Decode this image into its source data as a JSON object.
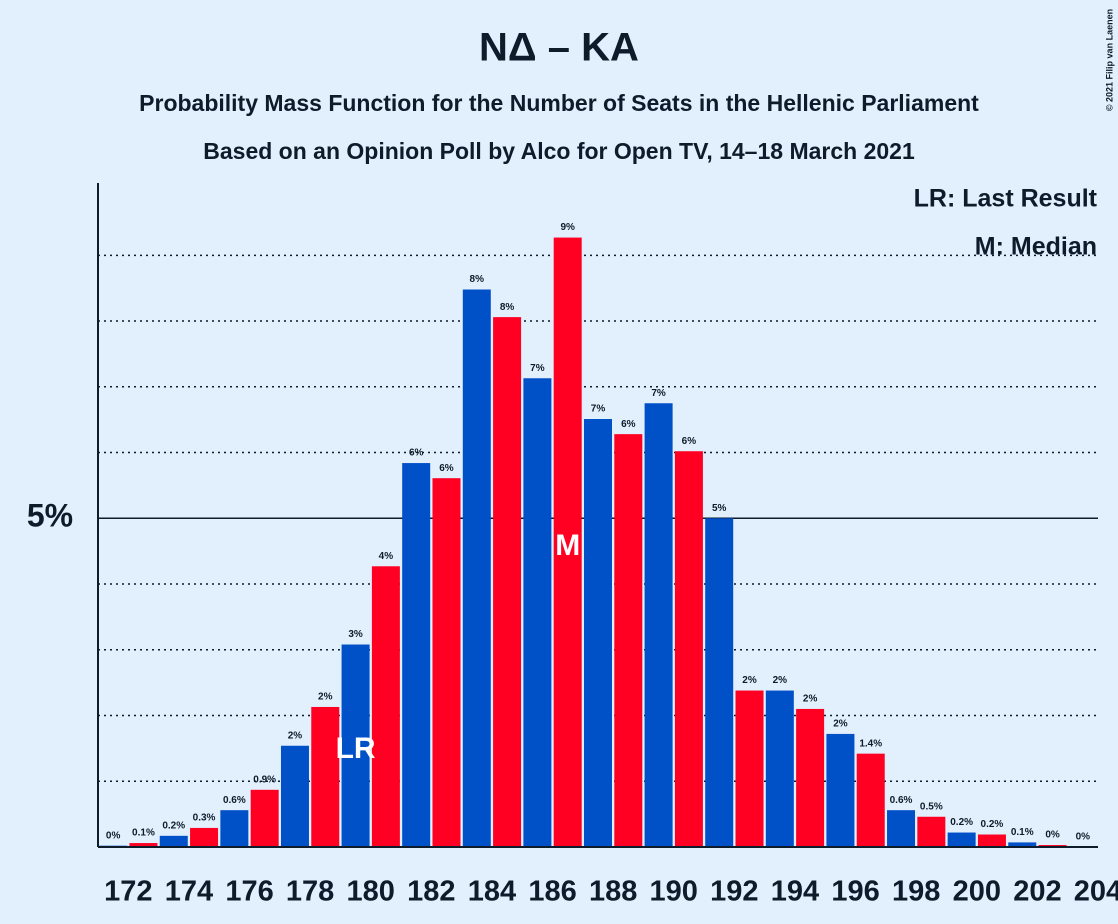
{
  "chart_data": {
    "type": "bar",
    "title": "NΔ – KA",
    "subtitle": [
      "Probability Mass Function for the Number of Seats in the Hellenic Parliament",
      "Based on an Opinion Poll by Alco for Open TV, 14–18 March 2021"
    ],
    "copyright": "© 2021 Filip van Laenen",
    "categories": [
      172,
      null,
      174,
      null,
      176,
      null,
      178,
      null,
      180,
      null,
      182,
      null,
      184,
      null,
      186,
      null,
      188,
      null,
      190,
      null,
      192,
      null,
      194,
      null,
      196,
      null,
      198,
      null,
      200,
      null,
      202,
      null,
      204
    ],
    "values": [
      0.02,
      0.06,
      0.17,
      0.29,
      0.56,
      0.87,
      1.54,
      2.13,
      3.08,
      4.27,
      5.84,
      5.61,
      8.48,
      8.06,
      7.13,
      9.27,
      6.51,
      6.28,
      6.75,
      6.02,
      5.0,
      2.38,
      2.38,
      2.1,
      1.72,
      1.42,
      0.56,
      0.46,
      0.22,
      0.19,
      0.07,
      0.03,
      0.0
    ],
    "value_labels": [
      "0%",
      "0.1%",
      "0.2%",
      "0.3%",
      "0.6%",
      "0.9%",
      "2%",
      "2%",
      "3%",
      "4%",
      "6%",
      "6%",
      "8%",
      "8%",
      "7%",
      "9%",
      "7%",
      "6%",
      "7%",
      "6%",
      "5%",
      "2%",
      "2%",
      "2%",
      "2%",
      "1.4%",
      "0.6%",
      "0.5%",
      "0.2%",
      "0.2%",
      "0.1%",
      "0%",
      "0%"
    ],
    "colors": [
      "#0050c8",
      "#ff0022"
    ],
    "ylim": [
      0,
      10.1
    ],
    "yticks": [
      {
        "value": 5,
        "label": "5%"
      }
    ],
    "minor_yticks": [
      1,
      2,
      3,
      4,
      6,
      7,
      8,
      9
    ],
    "annotations": [
      {
        "text": "LR",
        "at": 180
      },
      {
        "text": "M",
        "at": 187
      }
    ],
    "legend": [
      "LR: Last Result",
      "M: Median"
    ],
    "legend_position": "upper right"
  }
}
